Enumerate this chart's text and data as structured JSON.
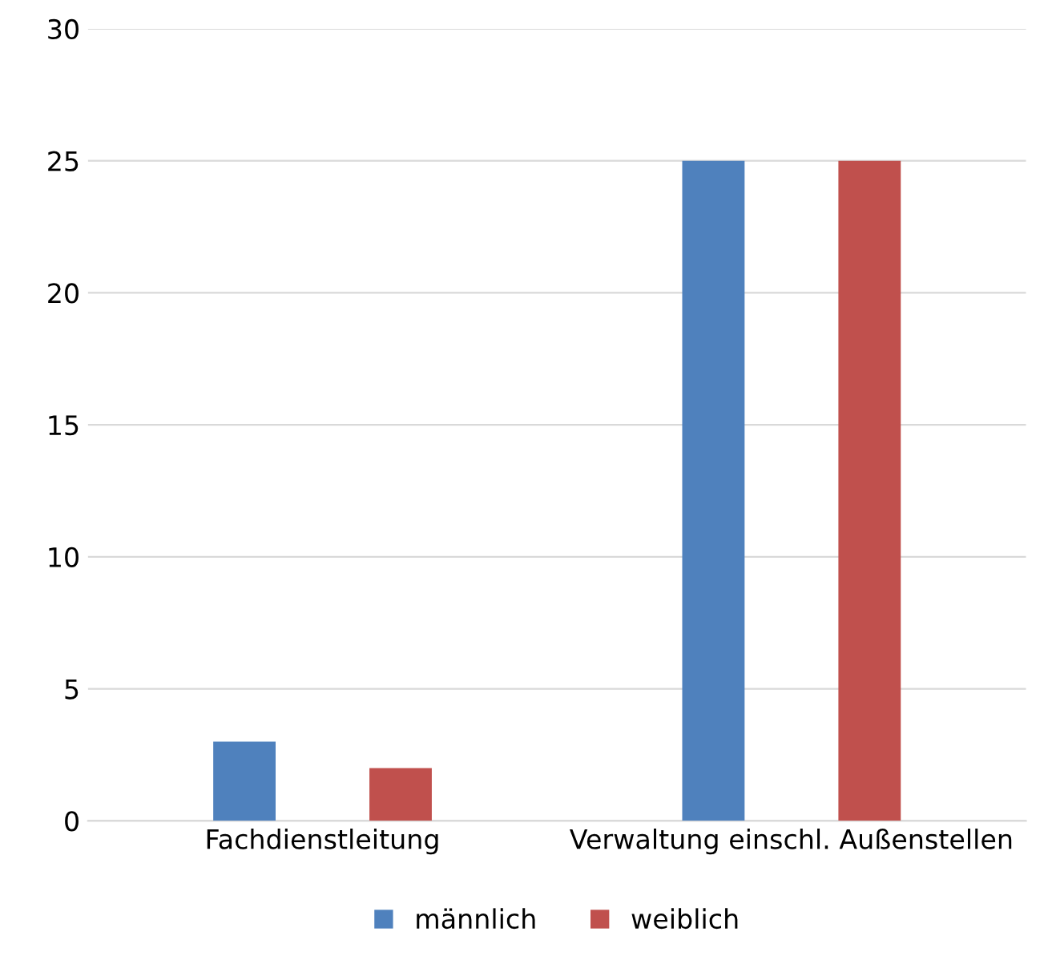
{
  "chart_data": {
    "type": "bar",
    "categories": [
      "Fachdienstleitung",
      "Verwaltung einschl. Außenstellen"
    ],
    "series": [
      {
        "name": "männlich",
        "color": "#4f81bd",
        "values": [
          3,
          25
        ]
      },
      {
        "name": "weiblich",
        "color": "#c0504d",
        "values": [
          2,
          25
        ]
      }
    ],
    "ylim": [
      0,
      30
    ],
    "yticks": [
      0,
      5,
      10,
      15,
      20,
      25,
      30
    ],
    "grid": "y",
    "legend": "bottom"
  }
}
